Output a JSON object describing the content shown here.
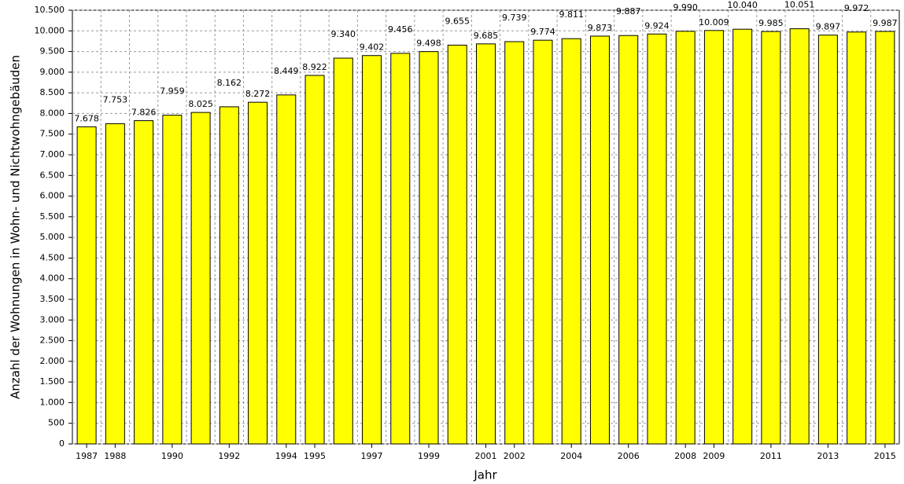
{
  "chart_data": {
    "type": "bar",
    "x_label": "Jahr",
    "y_label": "Anzahl der Wohnungen in Wohn- und Nichtwohngebäuden",
    "categories": [
      "1987",
      "1988",
      null,
      "1990",
      null,
      "1992",
      null,
      "1994",
      "1995",
      null,
      "1997",
      null,
      "1999",
      null,
      "2001",
      "2002",
      null,
      "2004",
      null,
      "2006",
      null,
      "2008",
      "2009",
      null,
      "2011",
      null,
      "2013",
      null,
      "2015"
    ],
    "values": [
      7678,
      7753,
      7826,
      7959,
      8025,
      8162,
      8272,
      8449,
      8922,
      9340,
      9402,
      9456,
      9498,
      9655,
      9685,
      9739,
      9774,
      9811,
      9873,
      9887,
      9924,
      9990,
      10009,
      10040,
      9985,
      10051,
      9897,
      9972,
      9987
    ],
    "value_labels": [
      "7.678",
      "7.753",
      "7.826",
      "7.959",
      "8.025",
      "8.162",
      "8.272",
      "8.449",
      "8.922",
      "9.340",
      "9.402",
      "9.456",
      "9.498",
      "9.655",
      "9.685",
      "9.739",
      "9.774",
      "9.811",
      "9.873",
      "9.887",
      "9.924",
      "9.990",
      "10.009",
      "10.040",
      "9.985",
      "10.051",
      "9.897",
      "9.972",
      "9.987"
    ],
    "color": "#ffff00",
    "ylim": [
      0,
      10500
    ],
    "yticks": [
      0,
      500,
      {
        "value": 1000,
        "label": "1.000"
      },
      {
        "value": 1500,
        "label": "1.500"
      },
      {
        "value": 2000,
        "label": "2.000"
      },
      {
        "value": 2500,
        "label": "2.500"
      },
      {
        "value": 3000,
        "label": "3.000"
      },
      {
        "value": 3500,
        "label": "3.500"
      },
      {
        "value": 4000,
        "label": "4.000"
      },
      {
        "value": 4500,
        "label": "4.500"
      },
      {
        "value": 5000,
        "label": "5.000"
      },
      {
        "value": 5500,
        "label": "5.500"
      },
      {
        "value": 6000,
        "label": "6.000"
      },
      {
        "value": 6500,
        "label": "6.500"
      },
      {
        "value": 7000,
        "label": "7.000"
      },
      {
        "value": 7500,
        "label": "7.500"
      },
      {
        "value": 8000,
        "label": "8.000"
      },
      {
        "value": 8500,
        "label": "8.500"
      },
      {
        "value": 9000,
        "label": "9.000"
      },
      {
        "value": 9500,
        "label": "9.500"
      },
      {
        "value": 10000,
        "label": "10.000"
      },
      {
        "value": 10500,
        "label": "10.500"
      }
    ],
    "grid": true
  }
}
